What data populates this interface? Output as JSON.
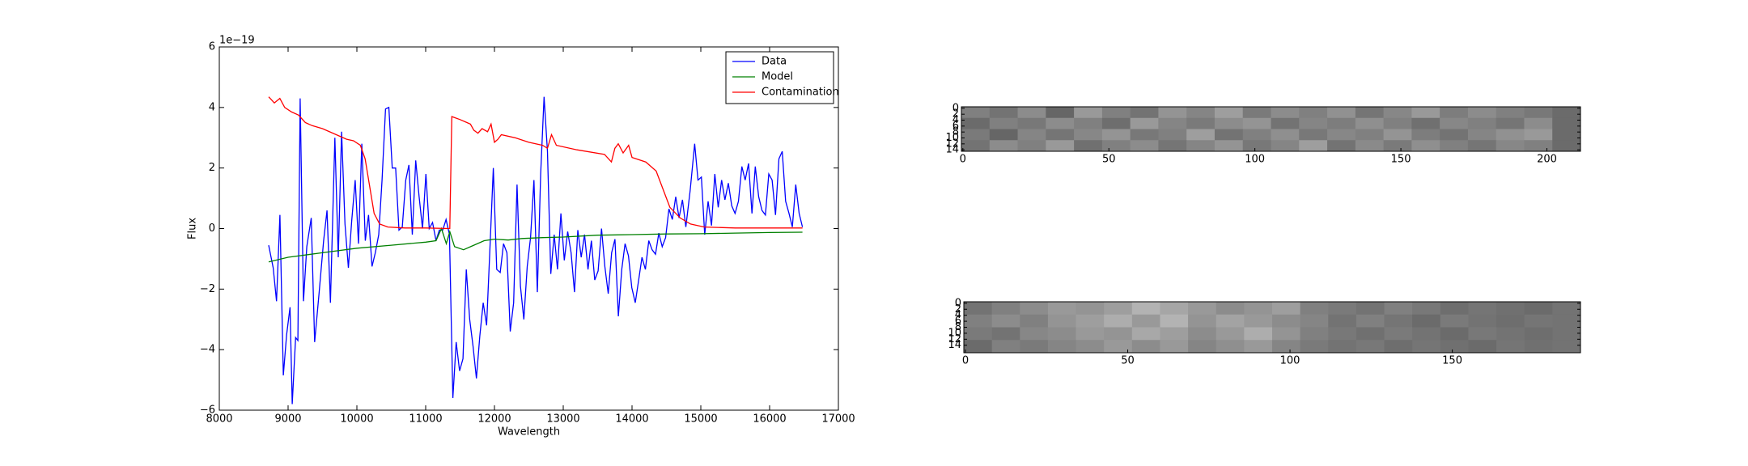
{
  "chart_data": [
    {
      "type": "line",
      "offset_label": "1e−19",
      "xlabel": "Wavelength",
      "ylabel": "Flux",
      "xlim": [
        8000,
        17000
      ],
      "xticks": [
        8000,
        9000,
        10000,
        11000,
        12000,
        13000,
        14000,
        15000,
        16000,
        17000
      ],
      "ylim": [
        -6,
        6
      ],
      "yticks": [
        {
          "value": -6,
          "label": "−6"
        },
        {
          "value": -4,
          "label": "−4"
        },
        {
          "value": -2,
          "label": "−2"
        },
        0,
        2,
        4,
        6
      ],
      "legend": "upper right",
      "series": [
        {
          "name": "Data",
          "color": "#0000ff",
          "x": [
            8718,
            8783,
            8832,
            8881,
            8930,
            8979,
            9028,
            9060,
            9109,
            9142,
            9175,
            9223,
            9272,
            9337,
            9386,
            9452,
            9517,
            9566,
            9615,
            9680,
            9729,
            9778,
            9827,
            9876,
            9925,
            9975,
            10023,
            10072,
            10122,
            10170,
            10220,
            10268,
            10318,
            10366,
            10416,
            10465,
            10514,
            10563,
            10612,
            10660,
            10710,
            10757,
            10806,
            10855,
            10905,
            10954,
            11003,
            11052,
            11100,
            11150,
            11199,
            11248,
            11297,
            11346,
            11395,
            11444,
            11493,
            11542,
            11591,
            11640,
            11689,
            11738,
            11787,
            11836,
            11886,
            11935,
            11984,
            12033,
            12083,
            12132,
            12181,
            12230,
            12279,
            12328,
            12378,
            12427,
            12476,
            12525,
            12574,
            12623,
            12672,
            12721,
            12770,
            12819,
            12868,
            12917,
            12966,
            13015,
            13065,
            13114,
            13163,
            13212,
            13261,
            13310,
            13360,
            13409,
            13458,
            13507,
            13556,
            13605,
            13654,
            13703,
            13752,
            13801,
            13850,
            13899,
            13948,
            13997,
            14047,
            14096,
            14145,
            14194,
            14243,
            14292,
            14341,
            14390,
            14439,
            14488,
            14537,
            14586,
            14635,
            14684,
            14733,
            14782,
            14845,
            14910,
            14959,
            15008,
            15057,
            15106,
            15155,
            15204,
            15253,
            15302,
            15351,
            15400,
            15449,
            15498,
            15547,
            15596,
            15645,
            15694,
            15743,
            15792,
            15841,
            15890,
            15939,
            15988,
            16037,
            16086,
            16135,
            16184,
            16233,
            16282,
            16331,
            16380,
            16429,
            16478
          ],
          "values": [
            -0.55,
            -1.3,
            -2.4,
            0.45,
            -4.85,
            -3.5,
            -2.6,
            -5.8,
            -3.6,
            -3.7,
            4.3,
            -2.4,
            -0.6,
            0.35,
            -3.75,
            -2.1,
            -0.4,
            0.6,
            -2.45,
            3.0,
            -0.95,
            3.2,
            0.15,
            -1.3,
            0.25,
            1.6,
            -0.5,
            2.8,
            -0.4,
            0.45,
            -1.25,
            -0.8,
            -0.2,
            1.6,
            3.95,
            4.0,
            2.0,
            2.0,
            -0.05,
            0.05,
            1.6,
            2.1,
            -0.2,
            2.25,
            1.05,
            0,
            1.8,
            0,
            0.2,
            -0.4,
            -0.05,
            -0.05,
            0.3,
            -0.2,
            -5.6,
            -3.75,
            -4.7,
            -4.3,
            -1.35,
            -3.0,
            -3.9,
            -4.95,
            -3.55,
            -2.45,
            -3.2,
            -0.6,
            2.0,
            -1.35,
            -1.45,
            -0.5,
            -0.8,
            -3.4,
            -2.45,
            1.45,
            -1.9,
            -3.0,
            -1.25,
            -0.3,
            1.6,
            -2.1,
            1.8,
            4.35,
            2.55,
            -1.5,
            -0.2,
            -1.35,
            0.5,
            -1.05,
            -0.1,
            -0.8,
            -2.1,
            -0.05,
            -0.95,
            -0.2,
            -1.35,
            -0.4,
            -1.7,
            -1.4,
            0,
            -1.25,
            -2.15,
            -0.8,
            -0.35,
            -2.9,
            -1.35,
            -0.5,
            -0.9,
            -1.95,
            -2.45,
            -1.7,
            -0.95,
            -1.35,
            -0.4,
            -0.7,
            -0.85,
            -0.15,
            -0.6,
            -0.3,
            0.65,
            0.3,
            1.05,
            0.35,
            0.95,
            0.05,
            1.25,
            2.8,
            1.6,
            1.7,
            -0.2,
            0.9,
            0.1,
            1.8,
            0.7,
            1.6,
            0.95,
            1.5,
            0.75,
            0.5,
            0.9,
            2.05,
            1.6,
            2.15,
            0.5,
            2.05,
            1.05,
            0.6,
            0.45,
            1.8,
            1.6,
            0.45,
            2.3,
            2.55,
            0.9,
            0.5,
            0.05,
            1.45,
            0.5,
            0.05
          ]
        },
        {
          "name": "Model",
          "color": "#008000",
          "x": [
            8718,
            9000,
            9500,
            10000,
            10500,
            11000,
            11150,
            11230,
            11300,
            11350,
            11420,
            11550,
            11700,
            11850,
            12000,
            12200,
            12400,
            12700,
            13000,
            13500,
            14000,
            14500,
            15000,
            15500,
            16000,
            16478
          ],
          "values": [
            -1.1,
            -0.95,
            -0.8,
            -0.65,
            -0.55,
            -0.45,
            -0.4,
            0.0,
            -0.5,
            -0.1,
            -0.6,
            -0.7,
            -0.55,
            -0.4,
            -0.35,
            -0.38,
            -0.33,
            -0.3,
            -0.28,
            -0.22,
            -0.2,
            -0.18,
            -0.17,
            -0.15,
            -0.13,
            -0.12
          ]
        },
        {
          "name": "Contamination",
          "color": "#ff0000",
          "x": [
            8718,
            8800,
            8880,
            8950,
            9050,
            9150,
            9250,
            9350,
            9500,
            9650,
            9750,
            9850,
            9950,
            10050,
            10120,
            10200,
            10250,
            10330,
            10450,
            10700,
            11000,
            11350,
            11380,
            11500,
            11600,
            11650,
            11700,
            11760,
            11820,
            11900,
            11950,
            12000,
            12050,
            12100,
            12300,
            12500,
            12700,
            12770,
            12830,
            12900,
            13200,
            13600,
            13700,
            13750,
            13800,
            13870,
            13950,
            14000,
            14200,
            14350,
            14450,
            14550,
            14700,
            14850,
            15050,
            15500,
            16478
          ],
          "values": [
            4.35,
            4.15,
            4.3,
            4.0,
            3.85,
            3.75,
            3.5,
            3.4,
            3.3,
            3.15,
            3.05,
            2.95,
            2.9,
            2.75,
            2.3,
            1.2,
            0.5,
            0.15,
            0.05,
            0.02,
            0.02,
            0.0,
            3.7,
            3.6,
            3.5,
            3.45,
            3.25,
            3.15,
            3.3,
            3.2,
            3.45,
            2.85,
            2.95,
            3.1,
            3.0,
            2.85,
            2.75,
            2.65,
            3.1,
            2.75,
            2.6,
            2.45,
            2.2,
            2.65,
            2.8,
            2.5,
            2.75,
            2.35,
            2.2,
            1.9,
            1.3,
            0.7,
            0.35,
            0.15,
            0.05,
            0.02,
            0.02
          ]
        }
      ]
    },
    {
      "type": "image",
      "xlim": [
        -0.5,
        211.5
      ],
      "ylim": [
        14.5,
        -0.5
      ],
      "xticks": [
        0,
        50,
        100,
        150,
        200
      ],
      "yticks": [
        0,
        2,
        4,
        6,
        8,
        10,
        12,
        14
      ],
      "z": [
        [
          0.5,
          0.45,
          0.55,
          0.4,
          0.6,
          0.5,
          0.45,
          0.58,
          0.52,
          0.62,
          0.48,
          0.55,
          0.5,
          0.57,
          0.46,
          0.53,
          0.6,
          0.49,
          0.55,
          0.5,
          0.47,
          0.42
        ],
        [
          0.42,
          0.5,
          0.47,
          0.55,
          0.5,
          0.43,
          0.6,
          0.52,
          0.48,
          0.55,
          0.58,
          0.45,
          0.52,
          0.49,
          0.56,
          0.5,
          0.44,
          0.53,
          0.5,
          0.46,
          0.55,
          0.42
        ],
        [
          0.48,
          0.4,
          0.52,
          0.46,
          0.53,
          0.58,
          0.47,
          0.5,
          0.62,
          0.45,
          0.5,
          0.56,
          0.47,
          0.53,
          0.5,
          0.58,
          0.49,
          0.45,
          0.52,
          0.57,
          0.6,
          0.42
        ],
        [
          0.45,
          0.55,
          0.5,
          0.6,
          0.44,
          0.5,
          0.55,
          0.46,
          0.52,
          0.58,
          0.47,
          0.52,
          0.62,
          0.45,
          0.54,
          0.48,
          0.56,
          0.5,
          0.46,
          0.53,
          0.5,
          0.42
        ]
      ]
    },
    {
      "type": "image",
      "xlim": [
        -0.5,
        189.5
      ],
      "ylim": [
        16.5,
        -0.5
      ],
      "xticks": [
        0,
        50,
        100,
        150
      ],
      "yticks": [
        0,
        2,
        4,
        6,
        8,
        10,
        12,
        14
      ],
      "z": [
        [
          0.45,
          0.5,
          0.55,
          0.6,
          0.58,
          0.62,
          0.7,
          0.65,
          0.6,
          0.55,
          0.58,
          0.62,
          0.5,
          0.48,
          0.45,
          0.5,
          0.47,
          0.43,
          0.46,
          0.44,
          0.42,
          0.45
        ],
        [
          0.5,
          0.55,
          0.5,
          0.58,
          0.62,
          0.68,
          0.6,
          0.7,
          0.58,
          0.64,
          0.6,
          0.55,
          0.52,
          0.45,
          0.5,
          0.46,
          0.42,
          0.48,
          0.45,
          0.43,
          0.46,
          0.45
        ],
        [
          0.48,
          0.45,
          0.53,
          0.55,
          0.6,
          0.58,
          0.66,
          0.62,
          0.55,
          0.6,
          0.68,
          0.58,
          0.5,
          0.47,
          0.44,
          0.48,
          0.45,
          0.42,
          0.47,
          0.45,
          0.43,
          0.45
        ],
        [
          0.42,
          0.5,
          0.48,
          0.52,
          0.55,
          0.6,
          0.55,
          0.6,
          0.52,
          0.56,
          0.6,
          0.52,
          0.48,
          0.45,
          0.47,
          0.43,
          0.46,
          0.44,
          0.42,
          0.46,
          0.44,
          0.45
        ]
      ]
    }
  ]
}
